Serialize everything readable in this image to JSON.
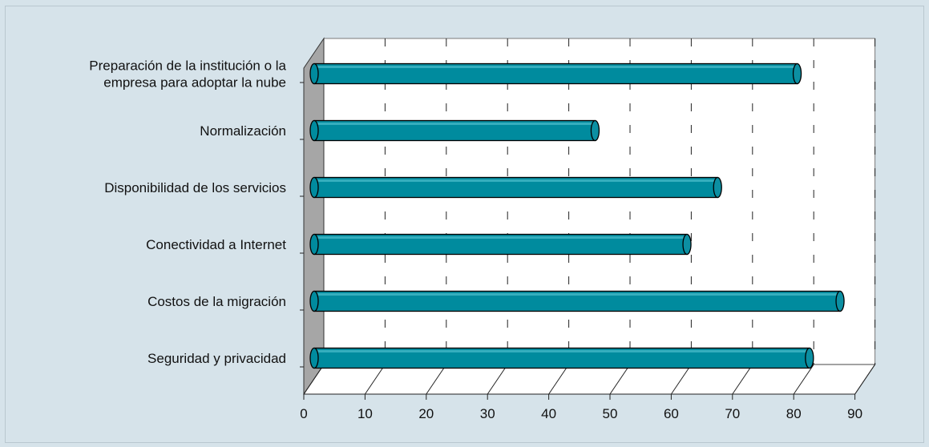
{
  "colors": {
    "background": "#d6e3ea",
    "plot_back": "#ffffff",
    "side_wall": "#a6a6a6",
    "bar_fill": "#008b9e",
    "bar_top": "#35aebe",
    "bar_cap": "#0c8fa2",
    "grid": "#222222"
  },
  "chart_data": {
    "type": "bar",
    "orientation": "horizontal",
    "three_d": true,
    "title": "",
    "xlabel": "",
    "ylabel": "",
    "xlim": [
      0,
      90
    ],
    "xticks": [
      "0",
      "10",
      "20",
      "30",
      "40",
      "50",
      "60",
      "70",
      "80",
      "90"
    ],
    "grid": "vertical dashed",
    "categories": [
      "Preparación de la institución o la empresa para adoptar la nube",
      "Normalización",
      "Disponibilidad de los servicios",
      "Conectividad a Internet",
      "Costos de la migración",
      "Seguridad y privacidad"
    ],
    "category_lines": [
      [
        "Preparación de la institución o la",
        "empresa para adoptar la nube"
      ],
      [
        "Normalización"
      ],
      [
        "Disponibilidad de los servicios"
      ],
      [
        "Conectividad a Internet"
      ],
      [
        "Costos de la migración"
      ],
      [
        "Seguridad y privacidad"
      ]
    ],
    "values": [
      79,
      46,
      66,
      61,
      86,
      81
    ]
  }
}
